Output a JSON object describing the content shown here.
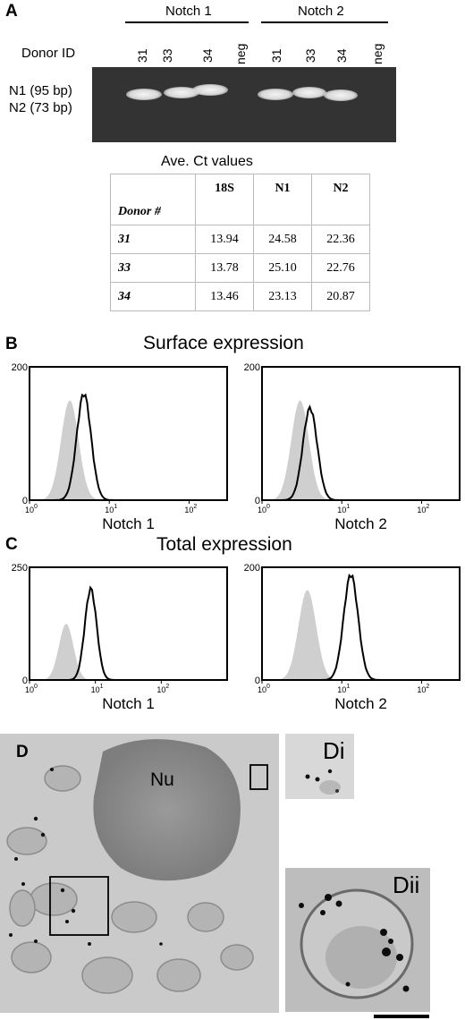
{
  "panel_a": {
    "letter": "A",
    "group_labels": [
      "Notch 1",
      "Notch 2"
    ],
    "donor_id_label": "Donor ID",
    "lanes": [
      "31",
      "33",
      "34",
      "neg",
      "31",
      "33",
      "34",
      "neg"
    ],
    "band_labels": [
      "N1 (95 bp)",
      "N2 (73 bp)"
    ],
    "table": {
      "title": "Ave. Ct values",
      "headers": [
        "Donor #",
        "18S",
        "N1",
        "N2"
      ],
      "rows": [
        [
          "31",
          "13.94",
          "24.58",
          "22.36"
        ],
        [
          "33",
          "13.78",
          "25.10",
          "22.76"
        ],
        [
          "34",
          "13.46",
          "23.13",
          "20.87"
        ]
      ]
    }
  },
  "panel_b": {
    "letter": "B",
    "title": "Surface expression"
  },
  "panel_c": {
    "letter": "C",
    "title": "Total expression"
  },
  "panel_d": {
    "letter": "D",
    "nucleus_label": "Nu",
    "inset_labels": [
      "Di",
      "Dii"
    ]
  },
  "chart_data": [
    {
      "type": "area",
      "panel": "B",
      "xlabel": "Notch 1",
      "x_scale": "log",
      "xlim": [
        1,
        300
      ],
      "ylim": [
        0,
        200
      ],
      "x_ticks": [
        "10",
        "10",
        "10"
      ],
      "x_tick_exponents": [
        "0",
        "1",
        "2"
      ],
      "y_ticks": [
        "0",
        "200"
      ],
      "series": [
        {
          "style": "filled-gray",
          "peak_x": 3.2,
          "peak_y": 150
        },
        {
          "style": "black-line",
          "peak_x": 4.8,
          "peak_y": 162
        }
      ]
    },
    {
      "type": "area",
      "panel": "B",
      "xlabel": "Notch 2",
      "x_scale": "log",
      "xlim": [
        1,
        300
      ],
      "ylim": [
        0,
        200
      ],
      "x_ticks": [
        "10",
        "10",
        "10"
      ],
      "x_tick_exponents": [
        "0",
        "1",
        "2"
      ],
      "y_ticks": [
        "0",
        "200"
      ],
      "series": [
        {
          "style": "filled-gray",
          "peak_x": 3.0,
          "peak_y": 150
        },
        {
          "style": "black-line",
          "peak_x": 4.0,
          "peak_y": 140
        }
      ]
    },
    {
      "type": "area",
      "panel": "C",
      "xlabel": "Notch 1",
      "x_scale": "log",
      "xlim": [
        1,
        1000
      ],
      "ylim": [
        0,
        250
      ],
      "x_ticks": [
        "10",
        "10",
        "10"
      ],
      "x_tick_exponents": [
        "0",
        "1",
        "2"
      ],
      "y_ticks": [
        "0",
        "250"
      ],
      "series": [
        {
          "style": "filled-gray",
          "peak_x": 3.6,
          "peak_y": 125
        },
        {
          "style": "black-line",
          "peak_x": 8.5,
          "peak_y": 205
        }
      ]
    },
    {
      "type": "area",
      "panel": "C",
      "xlabel": "Notch 2",
      "x_scale": "log",
      "xlim": [
        1,
        300
      ],
      "ylim": [
        0,
        200
      ],
      "x_ticks": [
        "10",
        "10",
        "10"
      ],
      "x_tick_exponents": [
        "0",
        "1",
        "2"
      ],
      "y_ticks": [
        "0",
        "200"
      ],
      "series": [
        {
          "style": "filled-gray",
          "peak_x": 3.7,
          "peak_y": 160
        },
        {
          "style": "black-line",
          "peak_x": 13,
          "peak_y": 190
        }
      ]
    }
  ]
}
